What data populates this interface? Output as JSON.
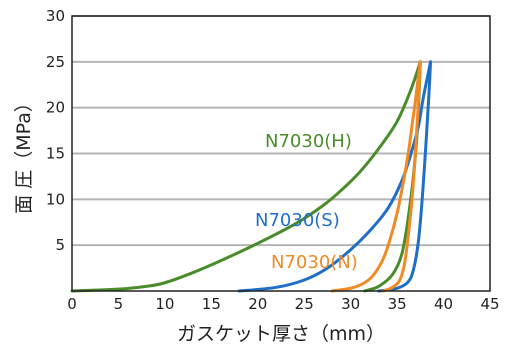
{
  "chart_data": {
    "type": "line",
    "xlabel": "ガスケット厚さ（mm）",
    "ylabel": "面 圧（MPa）",
    "xlim": [
      0,
      45
    ],
    "ylim": [
      0,
      30
    ],
    "xticks": [
      0,
      5,
      10,
      15,
      20,
      25,
      30,
      35,
      40,
      45
    ],
    "yticks": [
      5,
      10,
      15,
      20,
      25,
      30
    ],
    "grid": "horizontal",
    "series": [
      {
        "name": "N7030(H)",
        "color": "#4a8c2a",
        "loading": [
          [
            0,
            0
          ],
          [
            5,
            0.2
          ],
          [
            8,
            0.5
          ],
          [
            10,
            0.9
          ],
          [
            13,
            2
          ],
          [
            16,
            3.3
          ],
          [
            20,
            5.2
          ],
          [
            24,
            7.3
          ],
          [
            27,
            9.3
          ],
          [
            29,
            11
          ],
          [
            31,
            13
          ],
          [
            33,
            15.5
          ],
          [
            35,
            18.5
          ],
          [
            36.5,
            22
          ],
          [
            37.5,
            25
          ]
        ],
        "unloading": [
          [
            31.5,
            0
          ],
          [
            33,
            0.5
          ],
          [
            34.5,
            1.8
          ],
          [
            35.5,
            4
          ],
          [
            36.2,
            8
          ],
          [
            36.8,
            13
          ],
          [
            37.2,
            18
          ],
          [
            37.5,
            25
          ]
        ]
      },
      {
        "name": "N7030(S)",
        "color": "#1f6fc8",
        "loading": [
          [
            18,
            0
          ],
          [
            22,
            0.4
          ],
          [
            25,
            1.2
          ],
          [
            27.5,
            2.5
          ],
          [
            30,
            4.5
          ],
          [
            32,
            6.5
          ],
          [
            34,
            9
          ],
          [
            35.5,
            12
          ],
          [
            36.5,
            15
          ],
          [
            37.3,
            18
          ],
          [
            37.8,
            21
          ],
          [
            38.3,
            23.5
          ],
          [
            38.6,
            25
          ]
        ],
        "unloading": [
          [
            33,
            0
          ],
          [
            35,
            0.3
          ],
          [
            36.2,
            1
          ],
          [
            36.8,
            2.5
          ],
          [
            37.3,
            5.5
          ],
          [
            37.7,
            10
          ],
          [
            38.1,
            16
          ],
          [
            38.4,
            21
          ],
          [
            38.6,
            25
          ]
        ]
      },
      {
        "name": "N7030(N)",
        "color": "#f08a24",
        "loading": [
          [
            28,
            0
          ],
          [
            30,
            0.3
          ],
          [
            31.5,
            0.9
          ],
          [
            32.5,
            1.8
          ],
          [
            33.5,
            3.5
          ],
          [
            34.2,
            5.5
          ],
          [
            35,
            8.5
          ],
          [
            35.6,
            11.5
          ],
          [
            36.2,
            15
          ],
          [
            36.6,
            18
          ],
          [
            37,
            21
          ],
          [
            37.3,
            23.5
          ],
          [
            37.5,
            25
          ]
        ],
        "unloading": [
          [
            33.5,
            0
          ],
          [
            34.5,
            0.4
          ],
          [
            35.3,
            1.2
          ],
          [
            35.8,
            3
          ],
          [
            36.2,
            6
          ],
          [
            36.6,
            10
          ],
          [
            36.9,
            14
          ],
          [
            37.2,
            19
          ],
          [
            37.5,
            25
          ]
        ]
      }
    ],
    "annotations": [
      {
        "series": "N7030(H)",
        "text": "N7030(H)"
      },
      {
        "series": "N7030(S)",
        "text": "N7030(S)"
      },
      {
        "series": "N7030(N)",
        "text": "N7030(N)"
      }
    ]
  }
}
